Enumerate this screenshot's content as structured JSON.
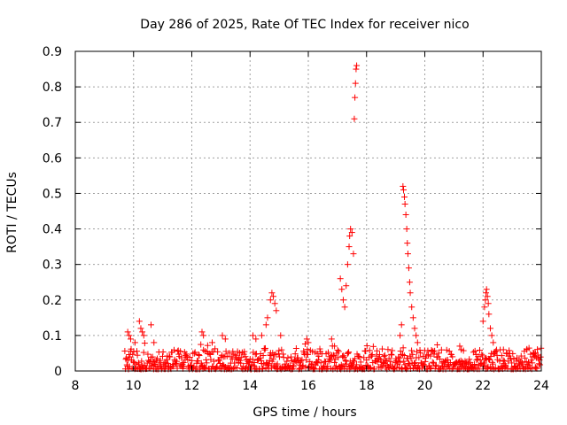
{
  "chart_data": {
    "type": "scatter",
    "title": "Day 286 of 2025, Rate Of TEC Index for receiver nico",
    "xlabel": "GPS time / hours",
    "ylabel": "ROTI / TECUs",
    "xlim": [
      8,
      24
    ],
    "ylim": [
      0,
      0.9
    ],
    "xticks": [
      8,
      10,
      12,
      14,
      16,
      18,
      20,
      22,
      24
    ],
    "yticks": [
      0,
      0.1,
      0.2,
      0.3,
      0.4,
      0.5,
      0.6,
      0.7,
      0.8,
      0.9
    ],
    "xtick_labels": [
      "8",
      "10",
      "12",
      "14",
      "16",
      "18",
      "20",
      "22",
      "24"
    ],
    "ytick_labels": [
      "0",
      "0.1",
      "0.2",
      "0.3",
      "0.4",
      "0.5",
      "0.6",
      "0.7",
      "0.8",
      "0.9"
    ],
    "grid": true,
    "marker": "plus",
    "color": "#ff0000",
    "data_start_hour": 9.7,
    "data_end_hour": 24.0,
    "baseline_range": [
      0.005,
      0.06
    ],
    "series": [
      {
        "name": "ROTI",
        "points": [
          [
            9.8,
            0.11
          ],
          [
            9.85,
            0.1
          ],
          [
            9.9,
            0.09
          ],
          [
            10.05,
            0.08
          ],
          [
            10.2,
            0.14
          ],
          [
            10.25,
            0.12
          ],
          [
            10.3,
            0.11
          ],
          [
            10.35,
            0.1
          ],
          [
            10.6,
            0.13
          ],
          [
            10.7,
            0.08
          ],
          [
            12.35,
            0.11
          ],
          [
            12.4,
            0.1
          ],
          [
            12.7,
            0.08
          ],
          [
            13.05,
            0.1
          ],
          [
            13.15,
            0.09
          ],
          [
            14.1,
            0.1
          ],
          [
            14.2,
            0.09
          ],
          [
            14.4,
            0.1
          ],
          [
            14.55,
            0.13
          ],
          [
            14.6,
            0.15
          ],
          [
            14.7,
            0.2
          ],
          [
            14.75,
            0.22
          ],
          [
            14.8,
            0.21
          ],
          [
            14.85,
            0.19
          ],
          [
            14.9,
            0.17
          ],
          [
            15.05,
            0.1
          ],
          [
            15.95,
            0.09
          ],
          [
            16.0,
            0.08
          ],
          [
            16.8,
            0.09
          ],
          [
            16.9,
            0.07
          ],
          [
            17.1,
            0.26
          ],
          [
            17.15,
            0.23
          ],
          [
            17.2,
            0.2
          ],
          [
            17.25,
            0.18
          ],
          [
            17.3,
            0.24
          ],
          [
            17.35,
            0.3
          ],
          [
            17.4,
            0.35
          ],
          [
            17.42,
            0.38
          ],
          [
            17.45,
            0.4
          ],
          [
            17.5,
            0.39
          ],
          [
            17.55,
            0.33
          ],
          [
            17.58,
            0.71
          ],
          [
            17.6,
            0.77
          ],
          [
            17.62,
            0.81
          ],
          [
            17.64,
            0.85
          ],
          [
            17.66,
            0.86
          ],
          [
            19.15,
            0.1
          ],
          [
            19.2,
            0.13
          ],
          [
            19.25,
            0.52
          ],
          [
            19.27,
            0.51
          ],
          [
            19.3,
            0.49
          ],
          [
            19.32,
            0.47
          ],
          [
            19.35,
            0.44
          ],
          [
            19.38,
            0.4
          ],
          [
            19.4,
            0.36
          ],
          [
            19.42,
            0.33
          ],
          [
            19.45,
            0.29
          ],
          [
            19.48,
            0.25
          ],
          [
            19.5,
            0.22
          ],
          [
            19.55,
            0.18
          ],
          [
            19.6,
            0.15
          ],
          [
            19.65,
            0.12
          ],
          [
            19.7,
            0.1
          ],
          [
            19.75,
            0.08
          ],
          [
            21.2,
            0.07
          ],
          [
            21.25,
            0.06
          ],
          [
            22.0,
            0.14
          ],
          [
            22.05,
            0.18
          ],
          [
            22.08,
            0.2
          ],
          [
            22.1,
            0.22
          ],
          [
            22.12,
            0.23
          ],
          [
            22.15,
            0.21
          ],
          [
            22.18,
            0.19
          ],
          [
            22.2,
            0.16
          ],
          [
            22.25,
            0.12
          ],
          [
            22.3,
            0.1
          ],
          [
            22.35,
            0.08
          ],
          [
            22.7,
            0.06
          ],
          [
            23.5,
            0.06
          ],
          [
            23.8,
            0.05
          ]
        ]
      }
    ]
  }
}
